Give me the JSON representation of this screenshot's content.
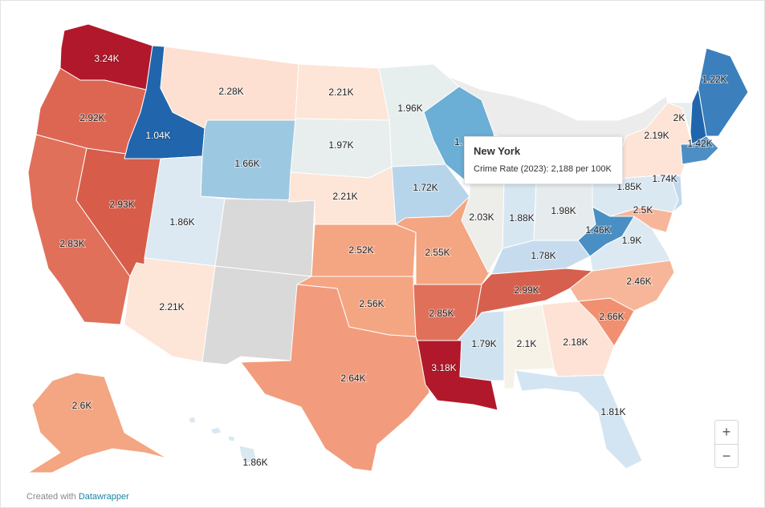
{
  "states": [
    {
      "name": "Washington",
      "color": "#b2182b",
      "label": "3.24K",
      "inverse": true
    },
    {
      "name": "Oregon",
      "color": "#dd6652",
      "label": "2.92K",
      "inverse": false
    },
    {
      "name": "California",
      "color": "#e0705a",
      "label": "2.83K",
      "inverse": false
    },
    {
      "name": "Nevada",
      "color": "#d75c49",
      "label": "2.93K",
      "inverse": false
    },
    {
      "name": "Idaho",
      "color": "#2166ac",
      "label": "1.04K",
      "inverse": true
    },
    {
      "name": "Montana",
      "color": "#fde0d2",
      "label": "2.28K",
      "inverse": false
    },
    {
      "name": "Wyoming",
      "color": "#9dc8e2",
      "label": "1.66K",
      "inverse": false
    },
    {
      "name": "Utah",
      "color": "#dce9f2",
      "label": "1.86K",
      "inverse": false
    },
    {
      "name": "Arizona",
      "color": "#fde5d7",
      "label": "2.21K",
      "inverse": false
    },
    {
      "name": "Colorado",
      "color": "#d9d9d9",
      "label": "",
      "inverse": false
    },
    {
      "name": "New Mexico",
      "color": "#d9d9d9",
      "label": "",
      "inverse": false
    },
    {
      "name": "North Dakota",
      "color": "#fde5d7",
      "label": "2.21K",
      "inverse": false
    },
    {
      "name": "South Dakota",
      "color": "#e8eeee",
      "label": "1.97K",
      "inverse": false
    },
    {
      "name": "Nebraska",
      "color": "#fde5d7",
      "label": "2.21K",
      "inverse": false
    },
    {
      "name": "Kansas",
      "color": "#f4a582",
      "label": "2.52K",
      "inverse": false
    },
    {
      "name": "Oklahoma",
      "color": "#f4a582",
      "label": "2.56K",
      "inverse": false
    },
    {
      "name": "Texas",
      "color": "#f29c7d",
      "label": "2.64K",
      "inverse": false
    },
    {
      "name": "Minnesota",
      "color": "#e6eeee",
      "label": "1.96K",
      "inverse": false
    },
    {
      "name": "Iowa",
      "color": "#b7d5ea",
      "label": "1.72K",
      "inverse": false
    },
    {
      "name": "Missouri",
      "color": "#f4a582",
      "label": "2.55K",
      "inverse": false
    },
    {
      "name": "Arkansas",
      "color": "#e0705a",
      "label": "2.85K",
      "inverse": false
    },
    {
      "name": "Louisiana",
      "color": "#b2182b",
      "label": "3.18K",
      "inverse": true
    },
    {
      "name": "Wisconsin",
      "color": "#6baed6",
      "label": "1.",
      "inverse": false
    },
    {
      "name": "Illinois",
      "color": "#ededea",
      "label": "2.03K",
      "inverse": false
    },
    {
      "name": "Michigan",
      "color": "#e8eeee",
      "label": "",
      "inverse": false
    },
    {
      "name": "Indiana",
      "color": "#d7e7f1",
      "label": "1.88K",
      "inverse": false
    },
    {
      "name": "Ohio",
      "color": "#e6ecee",
      "label": "1.98K",
      "inverse": false
    },
    {
      "name": "Kentucky",
      "color": "#c6dcee",
      "label": "1.78K",
      "inverse": false
    },
    {
      "name": "Tennessee",
      "color": "#d6604d",
      "label": "2.99K",
      "inverse": false
    },
    {
      "name": "Mississippi",
      "color": "#cfe2f0",
      "label": "1.79K",
      "inverse": false
    },
    {
      "name": "Alabama",
      "color": "#f6f2e8",
      "label": "2.1K",
      "inverse": false
    },
    {
      "name": "Georgia",
      "color": "#fde2d5",
      "label": "2.18K",
      "inverse": false
    },
    {
      "name": "Florida",
      "color": "#d3e5f2",
      "label": "1.81K",
      "inverse": false
    },
    {
      "name": "South Carolina",
      "color": "#f09070",
      "label": "2.66K",
      "inverse": false
    },
    {
      "name": "North Carolina",
      "color": "#f7b69a",
      "label": "2.46K",
      "inverse": false
    },
    {
      "name": "Virginia",
      "color": "#dce9f2",
      "label": "1.9K",
      "inverse": false
    },
    {
      "name": "West Virginia",
      "color": "#4a8fc4",
      "label": "1.46K",
      "inverse": false
    },
    {
      "name": "Maryland",
      "color": "#f7b69a",
      "label": "2.5K",
      "inverse": false
    },
    {
      "name": "Pennsylvania",
      "color": "#dae8f2",
      "label": "1.85K",
      "inverse": false
    },
    {
      "name": "New York",
      "color": "#fde4d6",
      "label": "2.19K",
      "inverse": false
    },
    {
      "name": "New Jersey",
      "color": "#c2d9ec",
      "label": "1.74K",
      "inverse": false
    },
    {
      "name": "Vermont",
      "color": "#e7eeee",
      "label": "2K",
      "inverse": false
    },
    {
      "name": "New Hampshire",
      "color": "#2166ac",
      "label": "",
      "inverse": false
    },
    {
      "name": "Maine",
      "color": "#3b7fbc",
      "label": "1.22K",
      "inverse": false
    },
    {
      "name": "Massachusetts",
      "color": "#4d8fc5",
      "label": "1.42K",
      "inverse": false
    },
    {
      "name": "Alaska",
      "color": "#f4a582",
      "label": "2.6K",
      "inverse": false
    },
    {
      "name": "Hawaii",
      "color": "#dae8f2",
      "label": "1.86K",
      "inverse": false
    }
  ],
  "tooltip": {
    "title": "New York",
    "body": "Crime Rate (2023): 2,188 per 100K"
  },
  "zoom": {
    "plus": "+",
    "minus": "−"
  },
  "credit": {
    "prefix": "Created with ",
    "link": "Datawrapper"
  }
}
